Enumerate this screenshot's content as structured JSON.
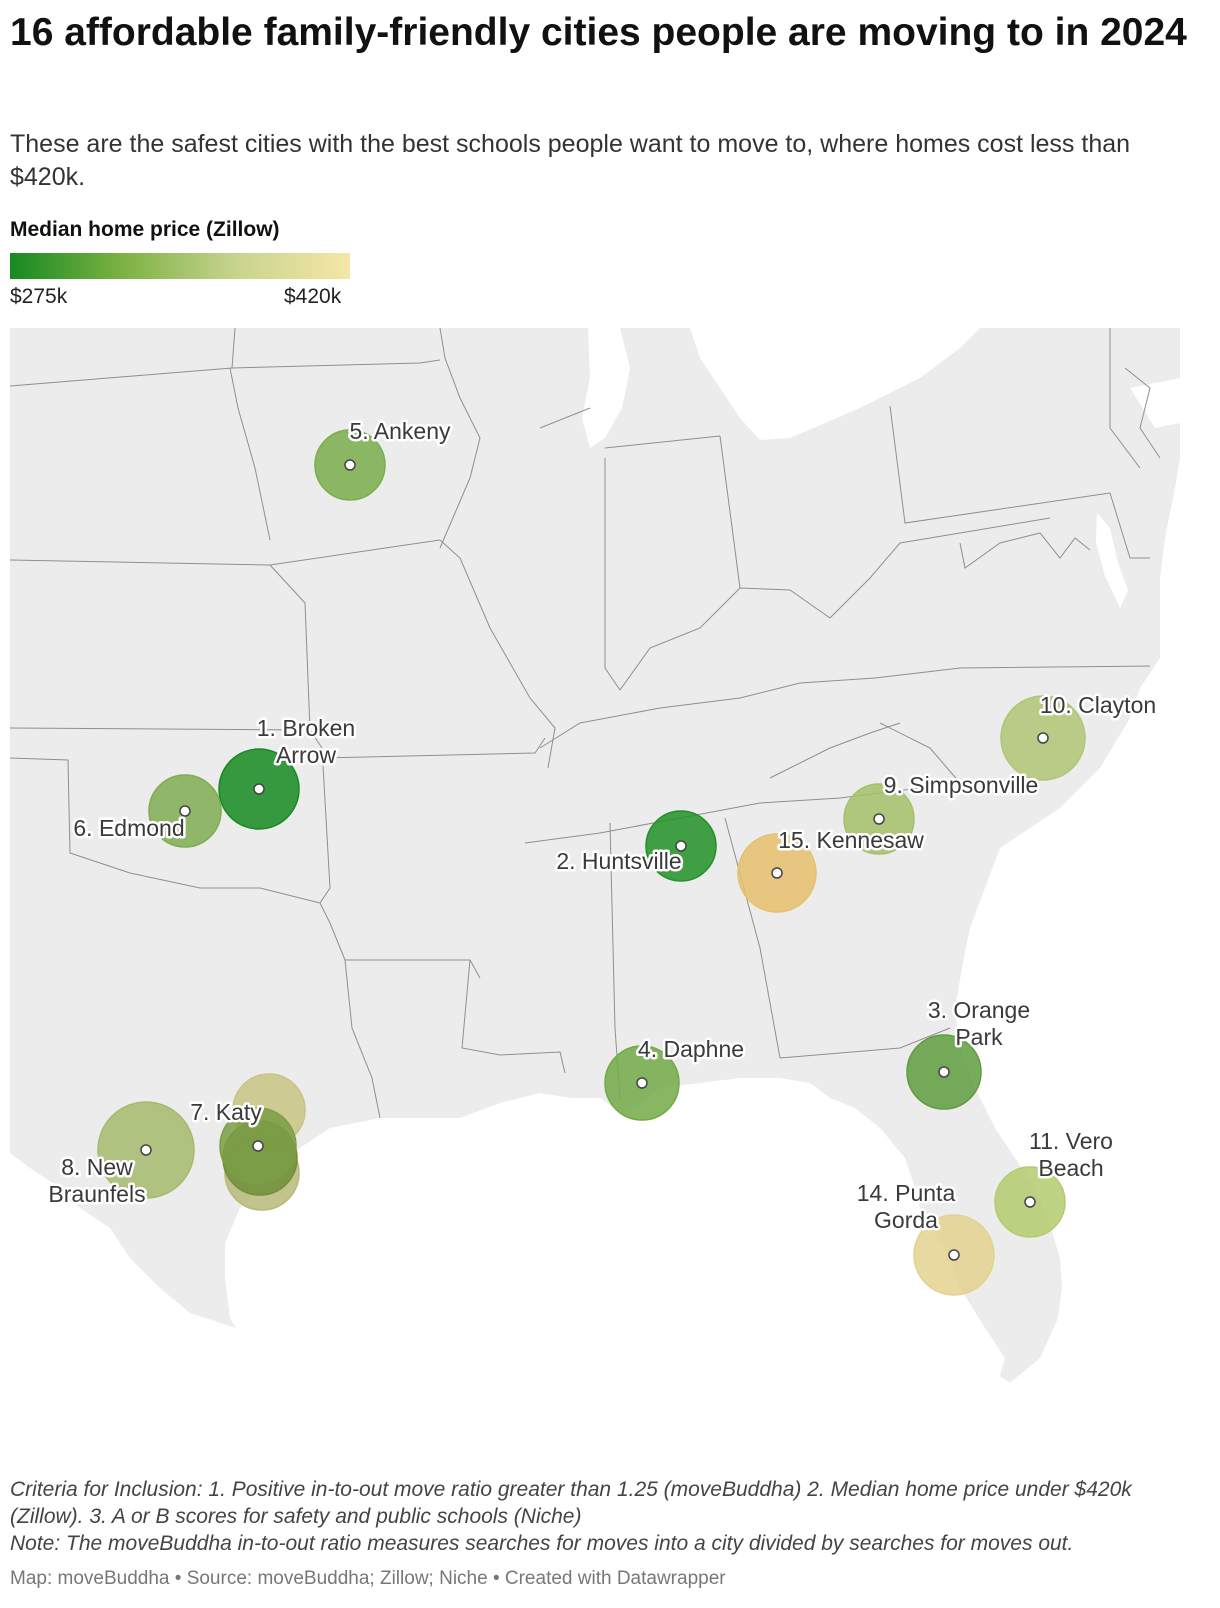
{
  "title": "16 affordable family-friendly cities people are moving to in 2024",
  "subtitle": "These are the safest cities with the best schools people want to move to, where homes cost less than $420k.",
  "legend": {
    "title": "Median home price (Zillow)",
    "min_label": "$275k",
    "max_label": "$420k",
    "colors": [
      "#168a21",
      "#7db243",
      "#c8d48f",
      "#f6e6a6"
    ]
  },
  "map": {
    "land_color": "#ececec",
    "border_color": "#8f8f8f",
    "water_color": "#ffffff",
    "cities": [
      {
        "label_lines": [
          "5. Ankeny"
        ],
        "color": "#7aad4b"
      },
      {
        "label_lines": [
          "1. Broken",
          "Arrow"
        ],
        "color": "#168a21"
      },
      {
        "label_lines": [
          "6. Edmond"
        ],
        "color": "#7fad52"
      },
      {
        "label_lines": [
          "2. Huntsville"
        ],
        "color": "#229227"
      },
      {
        "label_lines": [
          "15. Kennesaw"
        ],
        "color": "#e6c06c"
      },
      {
        "label_lines": [
          "9. Simpsonville"
        ],
        "color": "#a4c168"
      },
      {
        "label_lines": [
          "10. Clayton"
        ],
        "color": "#b2c576"
      },
      {
        "label_lines": [
          "3. Orange",
          "Park"
        ],
        "color": "#5e9e3e"
      },
      {
        "label_lines": [
          "4. Daphne"
        ],
        "color": "#72aa47"
      },
      {
        "label_lines": [
          "7. Katy"
        ],
        "color": "#7b9d45"
      },
      {
        "label_lines": [
          "8. New",
          "Braunfels"
        ],
        "color": "#a4bb6d"
      },
      {
        "label_lines": [
          "11. Vero",
          "Beach"
        ],
        "color": "#b4cb6e"
      },
      {
        "label_lines": [
          "14. Punta",
          "Gorda"
        ],
        "color": "#e3d28f"
      },
      {
        "label_lines": [],
        "color": "#c9c484"
      },
      {
        "label_lines": [],
        "color": "#b8b97a"
      },
      {
        "label_lines": [],
        "color": "#6f8f3a"
      }
    ]
  },
  "notes": [
    "Criteria for Inclusion: 1. Positive in-to-out move ratio greater than 1.25 (moveBuddha) 2. Median home price under $420k (Zillow). 3. A or B scores for safety and public schools (Niche)",
    "Note: The moveBuddha in-to-out ratio measures searches for moves into a city divided by searches for moves out."
  ],
  "footer": "Map: moveBuddha • Source: moveBuddha; Zillow; Niche • Created with Datawrapper"
}
